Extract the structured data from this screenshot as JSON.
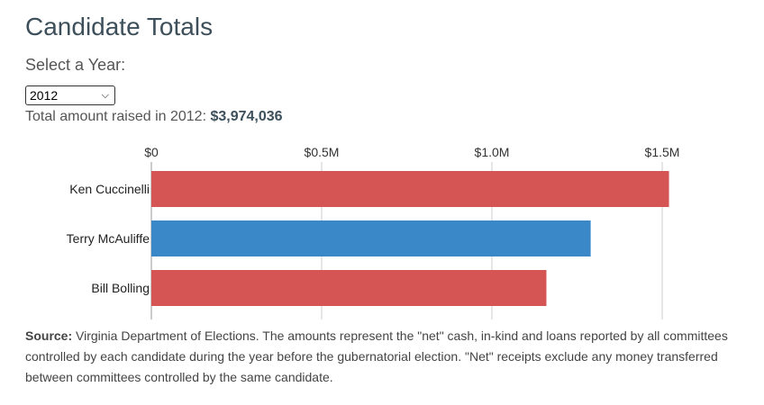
{
  "header": {
    "title": "Candidate Totals",
    "select_label": "Select a Year:"
  },
  "year_select": {
    "value": "2012"
  },
  "summary": {
    "prefix": "Total amount raised in 2012:",
    "amount": "$3,974,036"
  },
  "chart_data": {
    "type": "bar",
    "orientation": "horizontal",
    "categories": [
      "Ken Cuccinelli",
      "Terry McAuliffe",
      "Bill Bolling"
    ],
    "values": [
      1520000,
      1290000,
      1160000
    ],
    "colors": [
      "#d55454",
      "#3b88c8",
      "#d55454"
    ],
    "xlim": [
      0,
      1500000
    ],
    "xticks": [
      0,
      500000,
      1000000,
      1500000
    ],
    "xtick_labels": [
      "$0",
      "$0.5M",
      "$1.0M",
      "$1.5M"
    ],
    "axis_position": "top",
    "grid": true
  },
  "source": {
    "label": "Source:",
    "text": "Virginia Department of Elections. The amounts represent the \"net\" cash, in-kind and loans reported by all committees controlled by each candidate during the year before the gubernatorial election. \"Net\" receipts exclude any money transferred between committees controlled by the same candidate."
  }
}
